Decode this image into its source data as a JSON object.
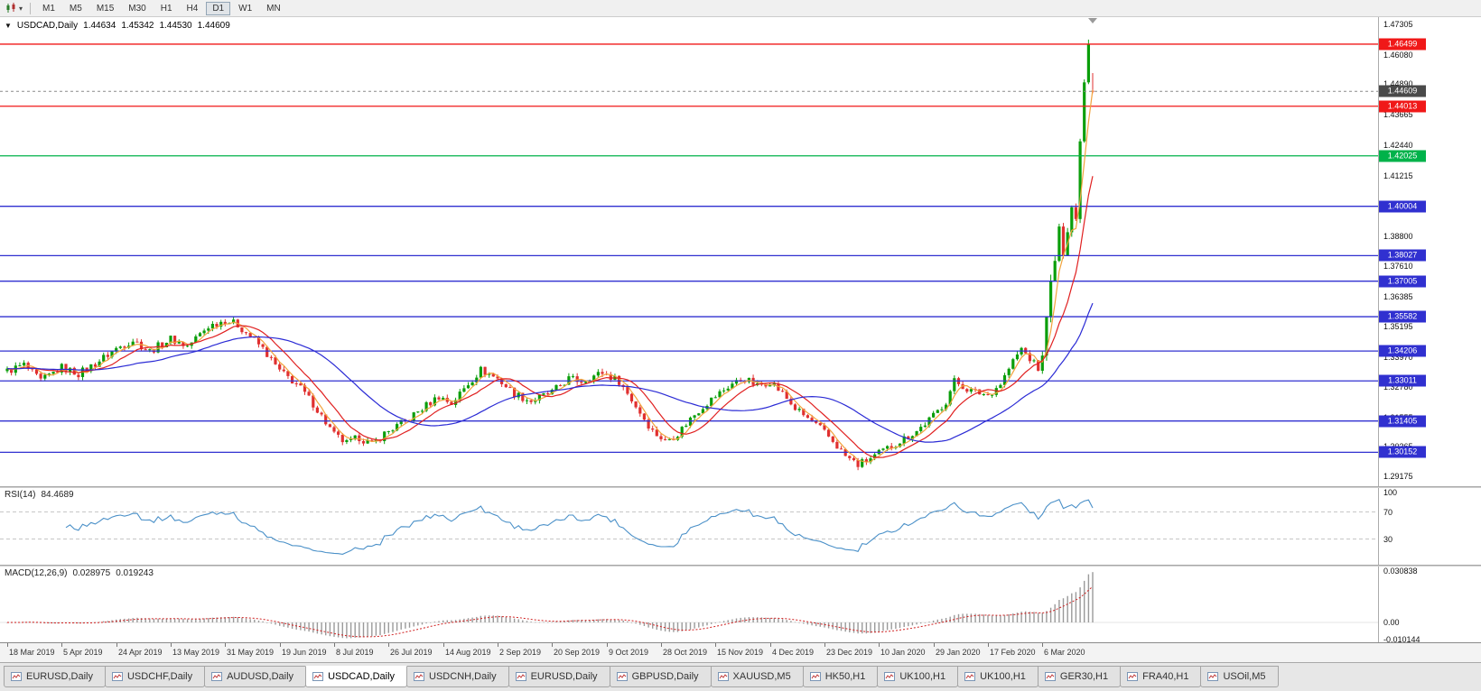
{
  "toolbar": {
    "timeframes": [
      "M1",
      "M5",
      "M15",
      "M30",
      "H1",
      "H4",
      "D1",
      "W1",
      "MN"
    ],
    "active_timeframe": "D1"
  },
  "chart_header": {
    "one_click_arrow": "▼",
    "symbol_period": "USDCAD,Daily",
    "open": "1.44634",
    "high": "1.45342",
    "low": "1.44530",
    "close": "1.44609"
  },
  "price_scale": {
    "ticks": [
      "1.47305",
      "1.46080",
      "1.44890",
      "1.43665",
      "1.42440",
      "1.41215",
      "1.40025",
      "1.38800",
      "1.37610",
      "1.36385",
      "1.35195",
      "1.33970",
      "1.32780",
      "1.31555",
      "1.30365",
      "1.29175"
    ]
  },
  "current_price": {
    "label": "1.44609",
    "value": 1.44609
  },
  "levels": [
    {
      "label": "1.46499",
      "value": 1.46499,
      "color": "#f01818"
    },
    {
      "label": "1.44013",
      "value": 1.44013,
      "color": "#f01818"
    },
    {
      "label": "1.42025",
      "value": 1.42025,
      "color": "#00b24a"
    },
    {
      "label": "1.40004",
      "value": 1.40004,
      "color": "#3030d0"
    },
    {
      "label": "1.38027",
      "value": 1.38027,
      "color": "#3030d0"
    },
    {
      "label": "1.37005",
      "value": 1.37005,
      "color": "#3030d0"
    },
    {
      "label": "1.35582",
      "value": 1.35582,
      "color": "#3030d0"
    },
    {
      "label": "1.34206",
      "value": 1.34206,
      "color": "#3030d0"
    },
    {
      "label": "1.33011",
      "value": 1.33011,
      "color": "#3030d0"
    },
    {
      "label": "1.31405",
      "value": 1.31405,
      "color": "#3030d0"
    },
    {
      "label": "1.30152",
      "value": 1.30152,
      "color": "#3030d0"
    }
  ],
  "rsi_panel": {
    "name": "RSI(14)",
    "value": "84.4689",
    "scale": [
      "100",
      "70",
      "30"
    ],
    "line_color": "#4a90c8"
  },
  "macd_panel": {
    "name": "MACD(12,26,9)",
    "value_main": "0.028975",
    "value_signal": "0.019243",
    "scale_top": "0.030838",
    "scale_zero": "0.00",
    "scale_bottom": "-0.010144"
  },
  "time_axis": {
    "labels": [
      "18 Mar 2019",
      "5 Apr 2019",
      "24 Apr 2019",
      "13 May 2019",
      "31 May 2019",
      "19 Jun 2019",
      "8 Jul 2019",
      "26 Jul 2019",
      "14 Aug 2019",
      "2 Sep 2019",
      "20 Sep 2019",
      "9 Oct 2019",
      "28 Oct 2019",
      "15 Nov 2019",
      "4 Dec 2019",
      "23 Dec 2019",
      "10 Jan 2020",
      "29 Jan 2020",
      "17 Feb 2020",
      "6 Mar 2020"
    ]
  },
  "tabs": [
    {
      "label": "EURUSD,Daily",
      "active": false
    },
    {
      "label": "USDCHF,Daily",
      "active": false
    },
    {
      "label": "AUDUSD,Daily",
      "active": false
    },
    {
      "label": "USDCAD,Daily",
      "active": true
    },
    {
      "label": "USDCNH,Daily",
      "active": false
    },
    {
      "label": "EURUSD,Daily",
      "active": false
    },
    {
      "label": "GBPUSD,Daily",
      "active": false
    },
    {
      "label": "XAUUSD,M5",
      "active": false
    },
    {
      "label": "HK50,H1",
      "active": false
    },
    {
      "label": "UK100,H1",
      "active": false
    },
    {
      "label": "UK100,H1",
      "active": false
    },
    {
      "label": "GER30,H1",
      "active": false
    },
    {
      "label": "FRA40,H1",
      "active": false
    },
    {
      "label": "USOil,M5",
      "active": false
    }
  ],
  "colors": {
    "current_badge": "#4a4a4a",
    "resistance_red": "#f01818",
    "pivot_green": "#00b24a",
    "support_blue": "#3030d0"
  },
  "chart_data": {
    "type": "candlestick",
    "symbol": "USDCAD",
    "period": "Daily",
    "y_range": [
      1.289,
      1.474
    ],
    "num_candles": 260,
    "spike_start": 247,
    "spike_high": 1.4668,
    "last_candle": {
      "o": 1.44634,
      "h": 1.45342,
      "l": 1.4453,
      "c": 1.44609
    },
    "up_color": "#0a9e0a",
    "down_color": "#e03030",
    "price_anchors": [
      [
        0,
        1.334
      ],
      [
        4,
        1.3365
      ],
      [
        8,
        1.33
      ],
      [
        13,
        1.3355
      ],
      [
        17,
        1.333
      ],
      [
        21,
        1.337
      ],
      [
        26,
        1.343
      ],
      [
        30,
        1.3465
      ],
      [
        34,
        1.342
      ],
      [
        39,
        1.347
      ],
      [
        43,
        1.344
      ],
      [
        48,
        1.352
      ],
      [
        52,
        1.3545
      ],
      [
        55,
        1.3525
      ],
      [
        58,
        1.348
      ],
      [
        61,
        1.343
      ],
      [
        65,
        1.334
      ],
      [
        69,
        1.329
      ],
      [
        73,
        1.321
      ],
      [
        78,
        1.3085
      ],
      [
        81,
        1.305
      ],
      [
        84,
        1.3075
      ],
      [
        87,
        1.3045
      ],
      [
        90,
        1.309
      ],
      [
        95,
        1.314
      ],
      [
        99,
        1.319
      ],
      [
        103,
        1.324
      ],
      [
        106,
        1.321
      ],
      [
        110,
        1.329
      ],
      [
        113,
        1.3345
      ],
      [
        117,
        1.331
      ],
      [
        121,
        1.325
      ],
      [
        125,
        1.322
      ],
      [
        130,
        1.3255
      ],
      [
        134,
        1.331
      ],
      [
        137,
        1.33
      ],
      [
        142,
        1.3335
      ],
      [
        146,
        1.33
      ],
      [
        150,
        1.32
      ],
      [
        154,
        1.31
      ],
      [
        157,
        1.306
      ],
      [
        160,
        1.309
      ],
      [
        163,
        1.315
      ],
      [
        166,
        1.32
      ],
      [
        169,
        1.324
      ],
      [
        173,
        1.329
      ],
      [
        176,
        1.331
      ],
      [
        179,
        1.328
      ],
      [
        182,
        1.33
      ],
      [
        185,
        1.325
      ],
      [
        188,
        1.319
      ],
      [
        191,
        1.315
      ],
      [
        194,
        1.311
      ],
      [
        197,
        1.306
      ],
      [
        200,
        1.3
      ],
      [
        203,
        1.2965
      ],
      [
        206,
        1.299
      ],
      [
        210,
        1.303
      ],
      [
        214,
        1.307
      ],
      [
        217,
        1.31
      ],
      [
        221,
        1.316
      ],
      [
        224,
        1.322
      ],
      [
        226,
        1.33
      ],
      [
        230,
        1.326
      ],
      [
        234,
        1.3245
      ],
      [
        237,
        1.329
      ],
      [
        240,
        1.338
      ],
      [
        242,
        1.343
      ],
      [
        244,
        1.339
      ],
      [
        246,
        1.335
      ],
      [
        247,
        1.34
      ],
      [
        248,
        1.356
      ],
      [
        249,
        1.37
      ],
      [
        250,
        1.378
      ],
      [
        251,
        1.392
      ],
      [
        252,
        1.38
      ],
      [
        253,
        1.39
      ],
      [
        254,
        1.4
      ],
      [
        255,
        1.395
      ],
      [
        256,
        1.426
      ],
      [
        257,
        1.45
      ],
      [
        258,
        1.465
      ],
      [
        259,
        1.44609
      ]
    ],
    "moving_averages": [
      {
        "period": 4,
        "color": "#f2a33c"
      },
      {
        "period": 10,
        "color": "#e02020"
      },
      {
        "period": 30,
        "color": "#2b2bd5"
      }
    ],
    "indicators": {
      "rsi": {
        "period": 14,
        "last": 84.4689,
        "levels": [
          70,
          30
        ]
      },
      "macd": {
        "fast": 12,
        "slow": 26,
        "signal": 9,
        "last_main": 0.028975,
        "last_signal": 0.019243
      }
    }
  }
}
